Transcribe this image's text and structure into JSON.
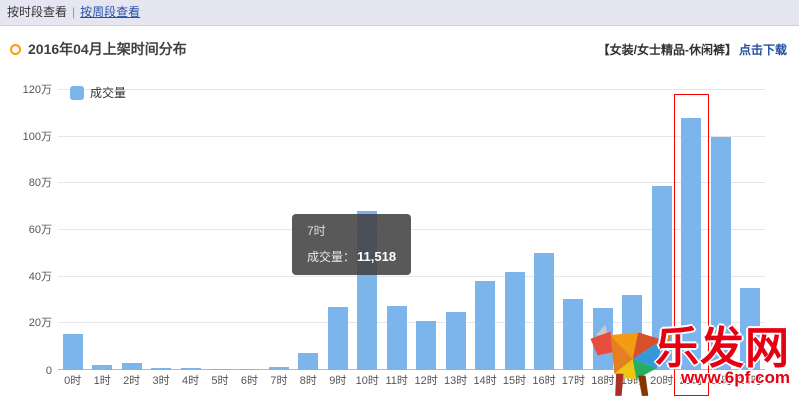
{
  "topbar": {
    "by_time": "按时段查看",
    "separator": "|",
    "by_week": "按周段查看"
  },
  "header": {
    "title": "2016年04月上架时间分布",
    "category": "【女装/女士精品-休闲裤】",
    "download": "点击下载"
  },
  "chart_data": {
    "type": "bar",
    "title": "2016年04月上架时间分布",
    "legend": "成交量",
    "legend_position": "top-left",
    "grid": true,
    "unit": "万",
    "categories": [
      "0时",
      "1时",
      "2时",
      "3时",
      "4时",
      "5时",
      "6时",
      "7时",
      "8时",
      "9时",
      "10时",
      "11时",
      "12时",
      "13时",
      "14时",
      "15时",
      "16时",
      "17时",
      "18时",
      "19时",
      "20时",
      "21时",
      "22时",
      "23时"
    ],
    "values_wan": [
      15.5,
      2,
      3,
      1,
      1,
      0.5,
      0.5,
      1.15,
      7.5,
      27,
      68,
      27.5,
      21,
      25,
      38,
      42,
      50,
      30.5,
      26.5,
      32,
      79,
      108,
      100,
      35
    ],
    "y_ticks": [
      "0",
      "20万",
      "40万",
      "60万",
      "80万",
      "100万",
      "120万"
    ],
    "ylim_wan": [
      0,
      120
    ],
    "bar_color": "#7cb5ec",
    "tooltip": {
      "title": "7时",
      "label": "成交量：",
      "value": "11,518"
    },
    "highlight_category": "21时",
    "highlight_color": "#ff0000"
  },
  "watermark": {
    "name": "乐发网",
    "url": "www.6pf.com"
  },
  "colors": {
    "topbar_bg": "#e6e6f2",
    "link": "#2450a4",
    "bullet": "#ff9c00",
    "bar": "#7cb5ec",
    "highlight": "#ff0000",
    "tooltip_bg": "rgba(66,66,66,0.88)",
    "watermark_red": "#e60012"
  }
}
